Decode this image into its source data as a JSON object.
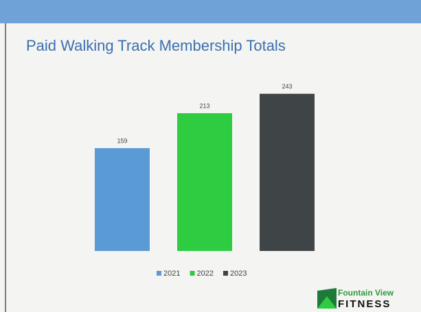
{
  "chart_data": {
    "type": "bar",
    "title": "Paid Walking Track Membership Totals",
    "categories": [
      null
    ],
    "series": [
      {
        "name": "2021",
        "color": "#5b9bd5",
        "values": [
          159
        ]
      },
      {
        "name": "2022",
        "color": "#2ecc40",
        "values": [
          213
        ]
      },
      {
        "name": "2023",
        "color": "#3f4447",
        "values": [
          243
        ]
      }
    ],
    "ylim": [
      0,
      300
    ],
    "grid": false,
    "legend": "bottom"
  },
  "logo": {
    "line1": "Fountain View",
    "line2": "FITNESS"
  }
}
